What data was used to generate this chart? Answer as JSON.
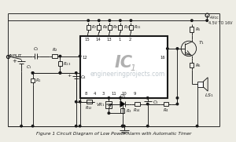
{
  "title": "Figure 1 Circuit Diagram of Low Power Alarm with Automatic Timer",
  "bg_color": "#eeede5",
  "line_color": "#1a1a1a",
  "text_color": "#1a1a1a",
  "watermark": "engineeringprojects.com",
  "watermark_color": "#a8b4bc",
  "ic_label": "IC",
  "ic_sub": "1",
  "vcc_label": "+Vcc\n4.5V TO 16V"
}
